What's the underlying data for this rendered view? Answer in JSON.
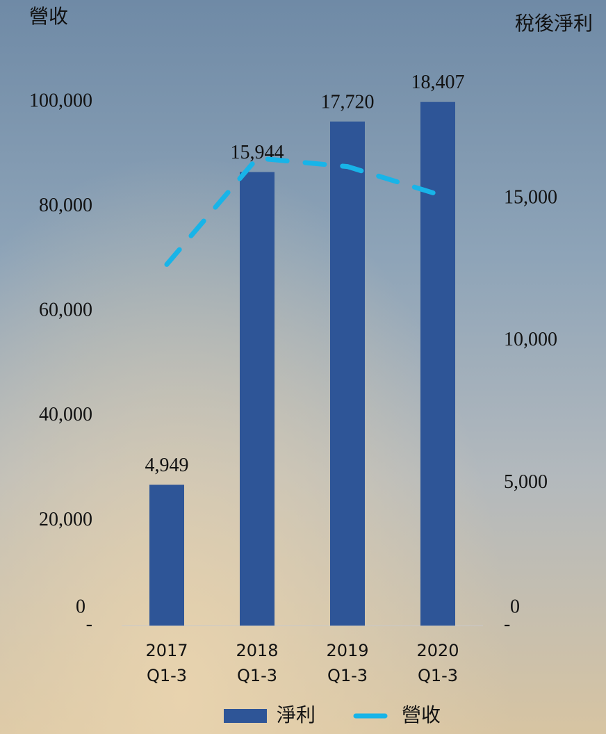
{
  "chart_data": {
    "type": "bar_line",
    "y_title": "營收",
    "y2_title": "稅後淨利",
    "categories": [
      "2017\nQ1-3",
      "2018\nQ1-3",
      "2019\nQ1-3",
      "2020\nQ1-3"
    ],
    "series": [
      {
        "name": "淨利",
        "type": "bar",
        "axis": "y2",
        "color": "#2e5597",
        "values": [
          4949,
          15944,
          17720,
          18407
        ],
        "value_labels": [
          "4,949",
          "15,944",
          "17,720",
          "18,407"
        ]
      },
      {
        "name": "營收",
        "type": "line",
        "axis": "y",
        "color": "#18b4e8",
        "dashed": true,
        "values": [
          69000,
          89300,
          87700,
          82400
        ]
      }
    ],
    "ylim": [
      0,
      100000
    ],
    "yticks": [
      {
        "value": 0,
        "label": "-"
      },
      {
        "value": 20000,
        "label": "20,000"
      },
      {
        "value": 40000,
        "label": "40,000"
      },
      {
        "value": 60000,
        "label": "60,000"
      },
      {
        "value": 80000,
        "label": "80,000"
      },
      {
        "value": 100000,
        "label": "100,000"
      }
    ],
    "y2lim": [
      0,
      18400
    ],
    "y2ticks": [
      {
        "value": 0,
        "label": "-"
      },
      {
        "value": 5000,
        "label": "5,000"
      },
      {
        "value": 10000,
        "label": "10,000"
      },
      {
        "value": 15000,
        "label": "15,000"
      }
    ],
    "annotations": [
      "0",
      "0"
    ],
    "legend": "bottom"
  }
}
